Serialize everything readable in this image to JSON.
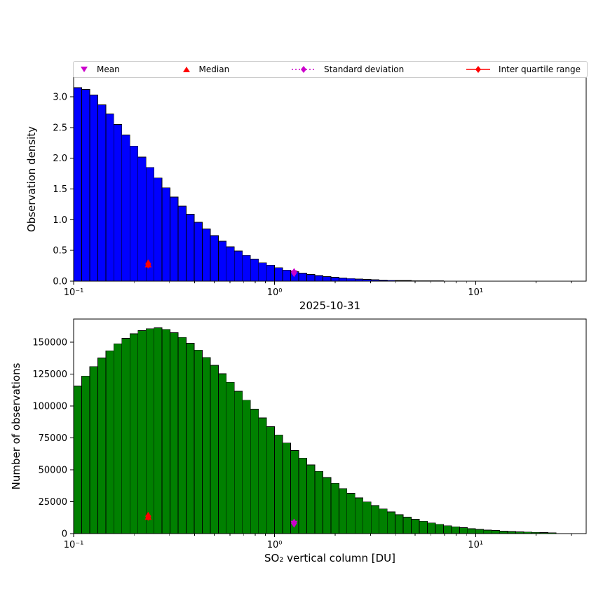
{
  "legend": {
    "items": [
      {
        "label": "Mean",
        "marker": "triangle-down",
        "color": "#cc00cc",
        "linestyle": "none"
      },
      {
        "label": "Median",
        "marker": "triangle-up",
        "color": "#ff0000",
        "linestyle": "none"
      },
      {
        "label": "Standard deviation",
        "marker": "diamond",
        "color": "#cc00cc",
        "linestyle": "dotted"
      },
      {
        "label": "Inter quartile range",
        "marker": "diamond",
        "color": "#ff0000",
        "linestyle": "solid"
      }
    ]
  },
  "chart_data": [
    {
      "type": "bar",
      "subtype": "histogram",
      "title": "",
      "xlabel": "2025-10-31",
      "ylabel": "Observation density",
      "xscale": "log",
      "xlim": [
        0.1,
        35.5
      ],
      "ylim": [
        0,
        3.32
      ],
      "xticks": [
        0.1,
        1,
        10
      ],
      "xtick_labels": [
        "10⁻¹",
        "10⁰",
        "10¹"
      ],
      "yticks": [
        0,
        0.5,
        1,
        1.5,
        2,
        2.5,
        3
      ],
      "ytick_labels": [
        "0.0",
        "0.5",
        "1.0",
        "1.5",
        "2.0",
        "2.5",
        "3.0"
      ],
      "grid": false,
      "bar_color": "#0000ff",
      "bar_edge_color": "#000000",
      "bins": {
        "start_log10": -1,
        "step_log10": 0.04,
        "count": 60
      },
      "values": [
        3.15,
        3.12,
        3.03,
        2.87,
        2.72,
        2.55,
        2.38,
        2.2,
        2.02,
        1.85,
        1.68,
        1.52,
        1.37,
        1.22,
        1.09,
        0.96,
        0.85,
        0.74,
        0.65,
        0.56,
        0.49,
        0.42,
        0.36,
        0.3,
        0.26,
        0.22,
        0.18,
        0.155,
        0.13,
        0.11,
        0.09,
        0.075,
        0.062,
        0.051,
        0.042,
        0.034,
        0.028,
        0.023,
        0.018,
        0.015,
        0.012,
        0.01,
        0.008,
        0.006,
        0.005,
        0.004,
        0.003,
        0.003,
        0.002,
        0.002,
        0.001,
        0.001,
        0.001,
        0.001,
        0,
        0,
        0,
        0,
        0,
        0
      ],
      "markers": [
        {
          "name": "median",
          "shape": "triangle-up",
          "color": "#ff0000",
          "x": 0.235,
          "y": 0.27
        },
        {
          "name": "iqr",
          "shape": "diamond",
          "color": "#ff0000",
          "x": 0.235,
          "y": 0.28
        },
        {
          "name": "mean",
          "shape": "triangle-down",
          "color": "#cc00cc",
          "x": 1.25,
          "y": 0.13
        },
        {
          "name": "std",
          "shape": "diamond",
          "color": "#cc00cc",
          "x": 1.25,
          "y": 0.14
        }
      ]
    },
    {
      "type": "bar",
      "subtype": "histogram",
      "title": "",
      "xlabel": "SO₂ vertical column [DU]",
      "ylabel": "Number of observations",
      "xscale": "log",
      "xlim": [
        0.1,
        35.5
      ],
      "ylim": [
        0,
        168000
      ],
      "xticks": [
        0.1,
        1,
        10
      ],
      "xtick_labels": [
        "10⁻¹",
        "10⁰",
        "10¹"
      ],
      "yticks": [
        0,
        25000,
        50000,
        75000,
        100000,
        125000,
        150000
      ],
      "ytick_labels": [
        "0",
        "25000",
        "50000",
        "75000",
        "100000",
        "125000",
        "150000"
      ],
      "grid": false,
      "bar_color": "#008000",
      "bar_edge_color": "#000000",
      "bins": {
        "start_log10": -1,
        "step_log10": 0.04,
        "count": 60
      },
      "values": [
        115600,
        123400,
        130800,
        137500,
        143200,
        148600,
        152900,
        156400,
        158900,
        160500,
        161200,
        159900,
        157300,
        153600,
        149000,
        143700,
        137900,
        131700,
        125100,
        118400,
        111400,
        104400,
        97500,
        90600,
        83800,
        77300,
        71000,
        65000,
        59200,
        53800,
        48700,
        43900,
        39400,
        35300,
        31500,
        28000,
        24800,
        22000,
        19300,
        17000,
        14900,
        12900,
        11300,
        9800,
        8400,
        7300,
        6200,
        5400,
        4600,
        3900,
        3300,
        2800,
        2400,
        2000,
        1700,
        1400,
        1200,
        1000,
        800,
        700
      ],
      "markers": [
        {
          "name": "median",
          "shape": "triangle-up",
          "color": "#ff0000",
          "x": 0.235,
          "y": 13000
        },
        {
          "name": "iqr",
          "shape": "diamond",
          "color": "#ff0000",
          "x": 0.235,
          "y": 13500
        },
        {
          "name": "mean",
          "shape": "triangle-down",
          "color": "#cc00cc",
          "x": 1.25,
          "y": 7800
        },
        {
          "name": "std",
          "shape": "diamond",
          "color": "#cc00cc",
          "x": 1.25,
          "y": 8200
        }
      ]
    }
  ]
}
